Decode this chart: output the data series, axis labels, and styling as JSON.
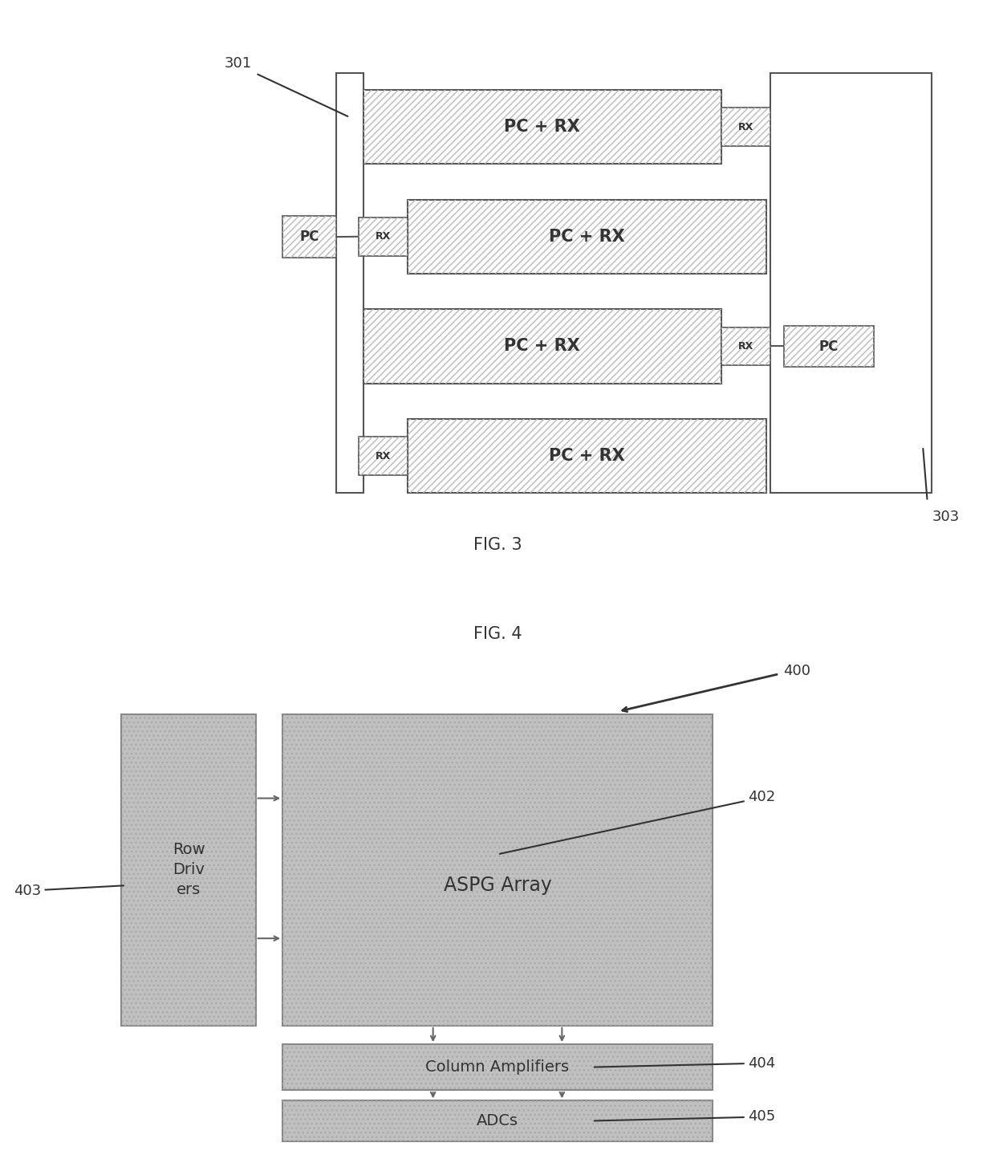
{
  "fig3": {
    "title": "FIG. 3",
    "label_301": "301",
    "label_303": "303",
    "box_edge": "#555555",
    "hatch_color": "#aaaaaa",
    "rows": [
      {
        "label": "PC + RX",
        "rx_right": true,
        "rx_left": false
      },
      {
        "label": "PC + RX",
        "rx_right": false,
        "rx_left": true
      },
      {
        "label": "PC + RX",
        "rx_right": true,
        "rx_left": false
      },
      {
        "label": "PC + RX",
        "rx_right": false,
        "rx_left": true
      }
    ]
  },
  "fig4": {
    "title": "FIG. 4",
    "label_400": "400",
    "label_402": "402",
    "label_403": "403",
    "label_404": "404",
    "label_405": "405",
    "gray_fill": "#c0c0c0",
    "box_edge": "#777777",
    "text_color": "#333333"
  }
}
